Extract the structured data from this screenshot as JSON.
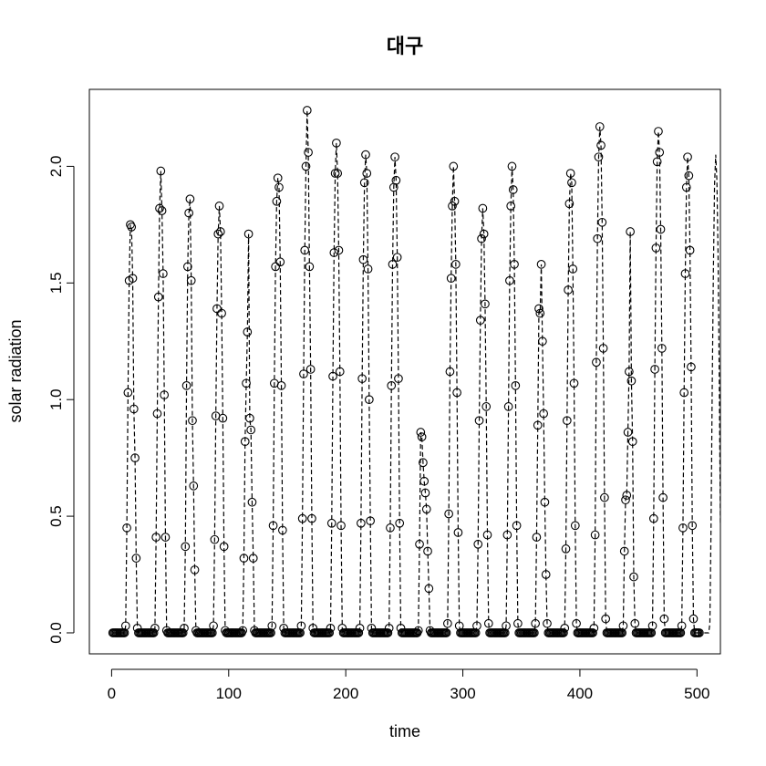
{
  "chart_data": {
    "type": "line",
    "style": "dashed line with open circle markers",
    "title": "대구",
    "xlabel": "time",
    "ylabel": "solar radiation",
    "xlim": [
      -19,
      520
    ],
    "ylim": [
      -0.09,
      2.33
    ],
    "x_ticks": [
      0,
      100,
      200,
      300,
      400,
      500
    ],
    "x_tick_labels": [
      "0",
      "100",
      "200",
      "300",
      "400",
      "500"
    ],
    "y_ticks": [
      0.0,
      0.5,
      1.0,
      1.5,
      2.0
    ],
    "y_tick_labels": [
      "0.0",
      "0.5",
      "1.0",
      "1.5",
      "2.0"
    ],
    "grid": false,
    "legend": "none",
    "x_start": 1,
    "x_step": 1,
    "series": [
      {
        "color": "#000000",
        "marker": "open-circle",
        "values": [
          0,
          0,
          0,
          0,
          0,
          0,
          0,
          0,
          0,
          0,
          0,
          0.03,
          0.45,
          1.03,
          1.51,
          1.75,
          1.74,
          1.52,
          0.96,
          0.75,
          0.32,
          0.02,
          0,
          0,
          0,
          0,
          0,
          0,
          0,
          0,
          0,
          0,
          0,
          0,
          0,
          0,
          0.02,
          0.41,
          0.94,
          1.44,
          1.82,
          1.98,
          1.81,
          1.54,
          1.02,
          0.41,
          0.01,
          0,
          0,
          0,
          0,
          0,
          0,
          0,
          0,
          0,
          0,
          0,
          0,
          0,
          0,
          0.02,
          0.37,
          1.06,
          1.57,
          1.8,
          1.86,
          1.51,
          0.91,
          0.63,
          0.27,
          0.01,
          0,
          0,
          0,
          0,
          0,
          0,
          0,
          0,
          0,
          0,
          0,
          0,
          0,
          0,
          0.03,
          0.4,
          0.93,
          1.39,
          1.71,
          1.83,
          1.72,
          1.37,
          0.92,
          0.37,
          0.01,
          0,
          0,
          0,
          0,
          0,
          0,
          0,
          0,
          0,
          0,
          0,
          0,
          0,
          0,
          0.01,
          0.32,
          0.82,
          1.07,
          1.29,
          1.71,
          0.92,
          0.87,
          0.56,
          0.32,
          0.01,
          0,
          0,
          0,
          0,
          0,
          0,
          0,
          0,
          0,
          0,
          0,
          0,
          0,
          0,
          0.03,
          0.46,
          1.07,
          1.57,
          1.85,
          1.95,
          1.91,
          1.59,
          1.06,
          0.44,
          0.02,
          0,
          0,
          0,
          0,
          0,
          0,
          0,
          0,
          0,
          0,
          0,
          0,
          0,
          0,
          0.03,
          0.49,
          1.11,
          1.64,
          2.0,
          2.24,
          2.06,
          1.57,
          1.13,
          0.49,
          0.02,
          0,
          0,
          0,
          0,
          0,
          0,
          0,
          0,
          0,
          0,
          0,
          0,
          0,
          0,
          0.02,
          0.47,
          1.1,
          1.63,
          1.97,
          2.1,
          1.97,
          1.64,
          1.12,
          0.46,
          0.02,
          0,
          0,
          0,
          0,
          0,
          0,
          0,
          0,
          0,
          0,
          0,
          0,
          0,
          0,
          0.02,
          0.47,
          1.09,
          1.6,
          1.93,
          2.05,
          1.97,
          1.56,
          1.0,
          0.48,
          0.02,
          0,
          0,
          0,
          0,
          0,
          0,
          0,
          0,
          0,
          0,
          0,
          0,
          0,
          0,
          0.02,
          0.45,
          1.06,
          1.58,
          1.91,
          2.04,
          1.94,
          1.61,
          1.09,
          0.47,
          0.02,
          0,
          0,
          0,
          0,
          0,
          0,
          0,
          0,
          0,
          0,
          0,
          0,
          0,
          0,
          0.01,
          0.38,
          0.86,
          0.84,
          0.73,
          0.65,
          0.6,
          0.53,
          0.35,
          0.19,
          0.01,
          0,
          0,
          0,
          0,
          0,
          0,
          0,
          0,
          0,
          0,
          0,
          0,
          0,
          0,
          0.04,
          0.51,
          1.12,
          1.52,
          1.83,
          2.0,
          1.85,
          1.58,
          1.03,
          0.43,
          0.03,
          0,
          0,
          0,
          0,
          0,
          0,
          0,
          0,
          0,
          0,
          0,
          0,
          0,
          0,
          0.03,
          0.38,
          0.91,
          1.34,
          1.69,
          1.82,
          1.71,
          1.41,
          0.97,
          0.42,
          0.04,
          0,
          0,
          0,
          0,
          0,
          0,
          0,
          0,
          0,
          0,
          0,
          0,
          0,
          0,
          0.03,
          0.42,
          0.97,
          1.51,
          1.83,
          2.0,
          1.9,
          1.58,
          1.06,
          0.46,
          0.04,
          0,
          0,
          0,
          0,
          0,
          0,
          0,
          0,
          0,
          0,
          0,
          0,
          0,
          0,
          0.04,
          0.41,
          0.89,
          1.39,
          1.37,
          1.58,
          1.25,
          0.94,
          0.56,
          0.25,
          0.04,
          0,
          0,
          0,
          0,
          0,
          0,
          0,
          0,
          0,
          0,
          0,
          0,
          0,
          0,
          0.02,
          0.36,
          0.91,
          1.47,
          1.84,
          1.97,
          1.93,
          1.56,
          1.07,
          0.46,
          0.04,
          0,
          0,
          0,
          0,
          0,
          0,
          0,
          0,
          0,
          0,
          0,
          0,
          0,
          0,
          0.02,
          0.42,
          1.16,
          1.69,
          2.04,
          2.17,
          2.09,
          1.76,
          1.22,
          0.58,
          0.06,
          0,
          0,
          0,
          0,
          0,
          0,
          0,
          0,
          0,
          0,
          0,
          0,
          0,
          0,
          0.03,
          0.35,
          0.57,
          0.59,
          0.86,
          1.12,
          1.72,
          1.08,
          0.82,
          0.24,
          0.04,
          0,
          0,
          0,
          0,
          0,
          0,
          0,
          0,
          0,
          0,
          0,
          0,
          0,
          0,
          0.03,
          0.49,
          1.13,
          1.65,
          2.02,
          2.15,
          2.06,
          1.73,
          1.22,
          0.58,
          0.06,
          0,
          0,
          0,
          0,
          0,
          0,
          0,
          0,
          0,
          0,
          0,
          0,
          0,
          0,
          0.03,
          0.45,
          1.03,
          1.54,
          1.91,
          2.04,
          1.96,
          1.64,
          1.14,
          0.46,
          0.06,
          0,
          0,
          0,
          0,
          0
        ]
      }
    ],
    "continuation_x": [
      500,
      501,
      502,
      503,
      504,
      505,
      506,
      507,
      508,
      509,
      510,
      511,
      512,
      513,
      514,
      515,
      516,
      517,
      518,
      519,
      520
    ],
    "continuation_values": [
      0,
      0,
      0,
      0,
      0,
      0,
      0,
      0,
      0,
      0,
      0,
      0.04,
      0.45,
      1.04,
      1.55,
      1.92,
      2.05,
      1.94,
      1.62,
      1.1,
      0.47
    ]
  }
}
